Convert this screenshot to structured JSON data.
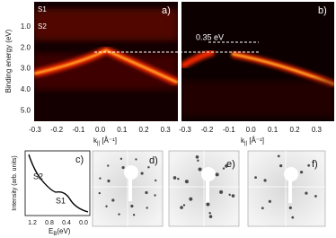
{
  "panel_labels": [
    "a)",
    "b)",
    "c)",
    "d)",
    "e)",
    "f)"
  ],
  "arpes": {
    "y_axis_label": "Binding energy (eV)",
    "y_ticks": [
      "1.0",
      "2.0",
      "3.0",
      "4.0",
      "5.0"
    ],
    "x_ticks": [
      "-0.3",
      "-0.2",
      "-0.1",
      "0.0",
      "0.1",
      "0.2",
      "0.3"
    ],
    "x_axis_label": "k",
    "x_axis_sub": "||",
    "x_axis_unit": " [Å⁻¹]",
    "state_labels": [
      "S1",
      "S2"
    ],
    "gap_annotation": "0.35 eV"
  },
  "spectrum": {
    "y_axis_label": "Intensity (arb. units)",
    "x_ticks": [
      "1.2",
      "0.8",
      "0.4",
      "0.0"
    ],
    "x_axis_label": "E",
    "x_axis_sub": "B",
    "x_axis_unit": "(eV)",
    "peak_labels": [
      "S2",
      "S1"
    ]
  }
}
